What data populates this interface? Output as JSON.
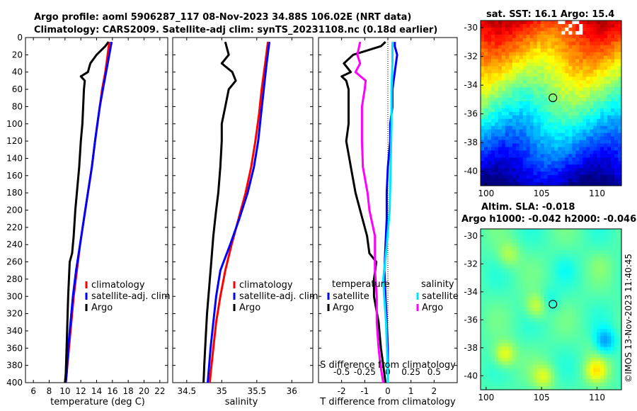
{
  "titles": {
    "line1": "Argo profile: aoml 5906287_117 08-Nov-2023 34.88S 106.02E (NRT data)",
    "line2": "Climatology: CARS2009. Satellite-adj clim: synTS_20231108.nc (0.18d earlier)"
  },
  "sst_title": "sat. SST: 16.1 Argo: 15.4",
  "sla_title1": "Altim. SLA: -0.018",
  "sla_title2": "Argo h1000: -0.042 h2000: -0.046",
  "watermark": "©IMOS 13-Nov-2023 11:40:45",
  "colors": {
    "climatology": "#ff0000",
    "satellite": "#0000ff",
    "argo": "#000000",
    "salinity_sat": "#00e5ff",
    "salinity_argo": "#ff00ff"
  },
  "chart_data": [
    {
      "type": "line",
      "id": "temperature",
      "xlabel": "temperature (deg C)",
      "ylabel": "depth",
      "xlim": [
        5,
        23
      ],
      "ylim": [
        0,
        400
      ],
      "x_ticks": [
        6,
        8,
        10,
        12,
        14,
        16,
        18,
        20,
        22
      ],
      "y_ticks": [
        0,
        20,
        40,
        60,
        80,
        100,
        120,
        140,
        160,
        180,
        200,
        220,
        240,
        260,
        280,
        300,
        320,
        340,
        360,
        380,
        400
      ],
      "legend": [
        "climatology",
        "satellite-adj. clim",
        "Argo"
      ],
      "series": [
        {
          "name": "climatology",
          "color_key": "climatology",
          "depth": [
            5,
            20,
            40,
            60,
            80,
            100,
            120,
            150,
            180,
            210,
            240,
            270,
            300,
            330,
            360,
            390,
            400
          ],
          "values": [
            15.6,
            15.4,
            15.1,
            14.7,
            14.4,
            14.1,
            13.8,
            13.4,
            12.9,
            12.4,
            11.9,
            11.5,
            11.1,
            10.8,
            10.5,
            10.2,
            10.1
          ]
        },
        {
          "name": "satellite-adj. clim",
          "color_key": "satellite",
          "depth": [
            5,
            20,
            40,
            60,
            80,
            100,
            120,
            150,
            180,
            210,
            240,
            270,
            300,
            330,
            360,
            390,
            400
          ],
          "values": [
            15.9,
            15.6,
            15.2,
            14.8,
            14.4,
            14.1,
            13.8,
            13.4,
            12.9,
            12.4,
            11.9,
            11.4,
            11.0,
            10.7,
            10.4,
            10.2,
            10.1
          ]
        },
        {
          "name": "Argo",
          "color_key": "argo",
          "depth": [
            5,
            10,
            20,
            30,
            40,
            45,
            50,
            60,
            80,
            100,
            120,
            150,
            180,
            200,
            230,
            250,
            260,
            280,
            300,
            330,
            360,
            390,
            400
          ],
          "values": [
            15.5,
            15.1,
            14.0,
            13.2,
            12.9,
            12.0,
            12.5,
            12.4,
            12.3,
            12.2,
            12.0,
            11.8,
            11.5,
            11.3,
            11.1,
            10.9,
            10.6,
            10.5,
            10.4,
            10.3,
            10.2,
            10.1,
            10.0
          ]
        }
      ]
    },
    {
      "type": "line",
      "id": "salinity",
      "xlabel": "salinity",
      "xlim": [
        34.3,
        36.3
      ],
      "ylim": [
        0,
        400
      ],
      "x_ticks": [
        34.5,
        35,
        35.5,
        36
      ],
      "legend": [
        "climatology",
        "satellite-adj. clim",
        "Argo"
      ],
      "series": [
        {
          "name": "climatology",
          "color_key": "climatology",
          "depth": [
            5,
            30,
            60,
            90,
            120,
            150,
            180,
            210,
            240,
            270,
            300,
            330,
            360,
            390,
            400
          ],
          "values": [
            35.66,
            35.62,
            35.57,
            35.53,
            35.48,
            35.42,
            35.34,
            35.24,
            35.14,
            35.05,
            34.98,
            34.92,
            34.88,
            34.84,
            34.83
          ]
        },
        {
          "name": "satellite-adj. clim",
          "color_key": "satellite",
          "depth": [
            5,
            30,
            60,
            90,
            120,
            150,
            180,
            210,
            240,
            270,
            300,
            330,
            360,
            390,
            400
          ],
          "values": [
            35.68,
            35.64,
            35.6,
            35.56,
            35.52,
            35.46,
            35.37,
            35.25,
            35.12,
            34.98,
            34.92,
            34.88,
            34.84,
            34.81,
            34.8
          ]
        },
        {
          "name": "Argo",
          "color_key": "argo",
          "depth": [
            5,
            20,
            30,
            40,
            50,
            60,
            80,
            100,
            120,
            150,
            180,
            200,
            230,
            260,
            290,
            320,
            350,
            380,
            400
          ],
          "values": [
            35.05,
            35.1,
            35.0,
            35.15,
            35.2,
            35.1,
            35.05,
            35.0,
            35.0,
            34.98,
            34.95,
            34.92,
            34.88,
            34.85,
            34.82,
            34.79,
            34.77,
            34.75,
            34.74
          ]
        }
      ]
    },
    {
      "type": "line",
      "id": "difference",
      "xlabel": "T difference from climatology",
      "top_label": "S difference from climatology",
      "xlim": [
        -3,
        3
      ],
      "ylim": [
        0,
        400
      ],
      "x_ticks": [
        -2,
        -1,
        0,
        1,
        2
      ],
      "top_ticks": [
        "-0.5",
        "-0.25",
        "0",
        "0.25",
        "0.5"
      ],
      "legend_temperature": {
        "header": "temperature",
        "items": [
          "satellite",
          "Argo"
        ]
      },
      "legend_salinity": {
        "header": "salinity",
        "items": [
          "satellite",
          "Argo"
        ]
      },
      "series": [
        {
          "name": "temperature satellite",
          "color_key": "satellite",
          "depth": [
            5,
            10,
            20,
            40,
            60,
            80,
            100,
            120,
            150,
            180,
            210,
            240,
            270,
            300,
            330,
            360,
            390,
            400
          ],
          "values": [
            0.3,
            0.3,
            0.4,
            0.3,
            0.2,
            0.2,
            0.1,
            0.1,
            0.0,
            -0.05,
            -0.05,
            -0.1,
            -0.15,
            -0.1,
            -0.05,
            0.0,
            0.0,
            0.0
          ]
        },
        {
          "name": "temperature Argo",
          "color_key": "argo",
          "depth": [
            5,
            10,
            20,
            30,
            40,
            45,
            50,
            60,
            80,
            100,
            120,
            150,
            180,
            200,
            230,
            250,
            260,
            280,
            300,
            330,
            360,
            380,
            400
          ],
          "values": [
            -0.1,
            -0.3,
            -1.5,
            -1.9,
            -1.6,
            -2.0,
            -1.8,
            -1.7,
            -1.7,
            -1.7,
            -1.8,
            -1.6,
            -1.4,
            -1.2,
            -0.9,
            -0.8,
            -0.5,
            -0.6,
            -0.6,
            -0.4,
            -0.3,
            -0.2,
            -0.1
          ]
        },
        {
          "name": "salinity satellite",
          "color_key": "salinity_sat",
          "depth": [
            5,
            30,
            60,
            100,
            150,
            200,
            250,
            280,
            300,
            330,
            360,
            390,
            400
          ],
          "values": [
            0.05,
            0.05,
            0.04,
            0.04,
            0.03,
            0.02,
            -0.02,
            -0.05,
            -0.04,
            -0.02,
            -0.01,
            0.0,
            0.0
          ]
        },
        {
          "name": "salinity Argo",
          "color_key": "salinity_argo",
          "depth": [
            5,
            20,
            30,
            40,
            50,
            60,
            80,
            100,
            120,
            150,
            180,
            200,
            230,
            250,
            270,
            300,
            330,
            360,
            380,
            400
          ],
          "values": [
            -0.3,
            -0.33,
            -0.3,
            -0.35,
            -0.24,
            -0.25,
            -0.28,
            -0.28,
            -0.28,
            -0.27,
            -0.22,
            -0.2,
            -0.14,
            -0.14,
            -0.14,
            -0.12,
            -0.12,
            -0.1,
            -0.08,
            -0.05
          ]
        }
      ]
    },
    {
      "type": "heatmap",
      "id": "sst_map",
      "title": "sat. SST: 16.1 Argo: 15.4",
      "x_ticks": [
        100,
        105,
        110
      ],
      "y_ticks": [
        -30,
        -32,
        -34,
        -36,
        -38,
        -40
      ],
      "xlim": [
        99.5,
        112.2
      ],
      "ylim": [
        -41,
        -29.5
      ],
      "marker": {
        "lon": 106.02,
        "lat": -34.88
      }
    },
    {
      "type": "heatmap",
      "id": "sla_map",
      "title": "Altim. SLA: -0.018",
      "x_ticks": [
        100,
        105,
        110
      ],
      "y_ticks": [
        -30,
        -32,
        -34,
        -36,
        -38,
        -40
      ],
      "xlim": [
        99.5,
        112.2
      ],
      "ylim": [
        -41,
        -29.5
      ],
      "marker": {
        "lon": 106.02,
        "lat": -34.88
      }
    }
  ]
}
